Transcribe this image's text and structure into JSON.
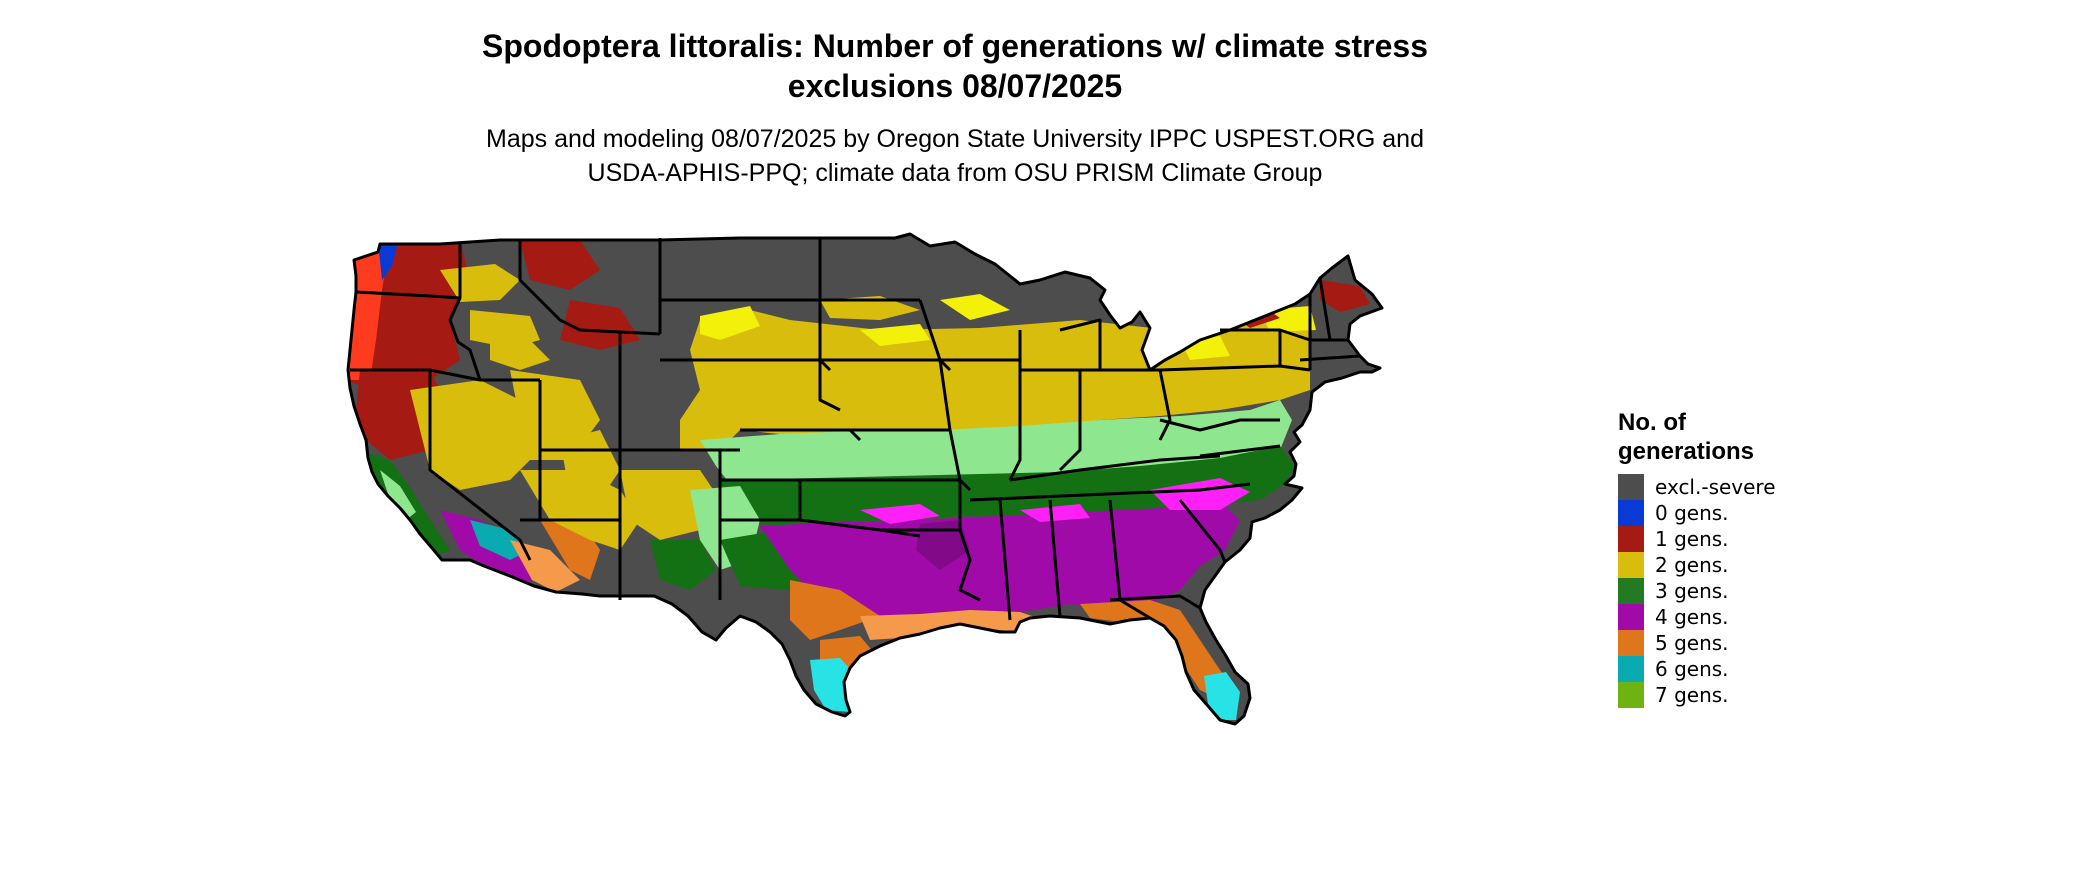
{
  "title": {
    "line1": "Spodoptera littoralis: Number of generations w/ climate stress",
    "line2": "exclusions 08/07/2025"
  },
  "subtitle": {
    "line1": "Maps and modeling 08/07/2025 by Oregon State University IPPC USPEST.ORG and",
    "line2": "USDA-APHIS-PPQ; climate data from OSU PRISM Climate Group"
  },
  "legend": {
    "title_line1": "No. of",
    "title_line2": "generations",
    "items": [
      {
        "label": "excl.-severe",
        "color": "#4d4d4d"
      },
      {
        "label": "0 gens.",
        "color": "#0a3ad6"
      },
      {
        "label": "1 gens.",
        "color": "#a51b14"
      },
      {
        "label": "2 gens.",
        "color": "#d9bd0c"
      },
      {
        "label": "3 gens.",
        "color": "#237a23"
      },
      {
        "label": "4 gens.",
        "color": "#a00aa8"
      },
      {
        "label": "5 gens.",
        "color": "#e0761b"
      },
      {
        "label": "6 gens.",
        "color": "#0aabb0"
      },
      {
        "label": "7 gens.",
        "color": "#6fb313"
      }
    ]
  },
  "map": {
    "region": "conterminous-united-states",
    "zone_colors": {
      "excl_severe": "#4d4d4d",
      "excl_light": "#ff3b1f",
      "gen0": "#0a3ad6",
      "gen1": "#a51b14",
      "gen2": "#d9bd0c",
      "gen2_bright": "#f3f00a",
      "gen3": "#137013",
      "gen3_light": "#8ee68e",
      "gen4": "#a00aa8",
      "gen4_bright": "#ff1ff7",
      "gen5": "#e0761b",
      "gen5_light": "#f59a4a",
      "gen6": "#27e3e6",
      "gen7": "#6fb313"
    }
  }
}
